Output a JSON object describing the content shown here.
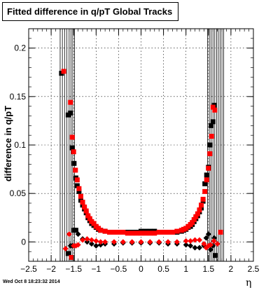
{
  "chart_data": {
    "type": "scatter",
    "title": "Fitted difference in q/pT  Global Tracks",
    "xlabel": "η",
    "ylabel": "difference in q/pT",
    "xlim": [
      -2.5,
      2.5
    ],
    "ylim": [
      -0.02,
      0.22
    ],
    "xticks": [
      "−2.5",
      "−2",
      "−1.5",
      "−1",
      "−0.5",
      "0",
      "0.5",
      "1",
      "1.5",
      "2",
      "2.5"
    ],
    "yticks": [
      "0",
      "0.05",
      "0.1",
      "0.15",
      "0.2"
    ],
    "grid": true,
    "legend": "none",
    "series": [
      {
        "color": "#000000",
        "markers": [
          "square",
          "diamond"
        ],
        "points": [
          [
            -1.77,
            0.174
          ],
          [
            -1.62,
            0.131
          ],
          [
            -1.57,
            0.133
          ],
          [
            -1.53,
            0.097
          ],
          [
            -1.49,
            0.081
          ],
          [
            -1.45,
            0.066
          ],
          [
            -1.42,
            0.058
          ],
          [
            -1.38,
            0.052
          ],
          [
            -1.34,
            0.043
          ],
          [
            -1.3,
            0.038
          ],
          [
            -1.26,
            0.034
          ],
          [
            -1.22,
            0.03
          ],
          [
            -1.18,
            0.025
          ],
          [
            -1.14,
            0.022
          ],
          [
            -1.1,
            0.019
          ],
          [
            -1.05,
            0.017
          ],
          [
            -1.0,
            0.015
          ],
          [
            -0.95,
            0.013
          ],
          [
            -0.9,
            0.012
          ],
          [
            -0.8,
            0.011
          ],
          [
            -0.7,
            0.01
          ],
          [
            -0.6,
            0.01
          ],
          [
            -0.5,
            0.01
          ],
          [
            -0.4,
            0.01
          ],
          [
            -0.3,
            0.01
          ],
          [
            -0.2,
            0.01
          ],
          [
            -0.1,
            0.01
          ],
          [
            0.0,
            0.011
          ],
          [
            0.1,
            0.011
          ],
          [
            0.2,
            0.011
          ],
          [
            0.3,
            0.011
          ],
          [
            0.4,
            0.01
          ],
          [
            0.5,
            0.01
          ],
          [
            0.6,
            0.01
          ],
          [
            0.7,
            0.01
          ],
          [
            0.8,
            0.01
          ],
          [
            0.9,
            0.011
          ],
          [
            0.95,
            0.012
          ],
          [
            1.0,
            0.013
          ],
          [
            1.05,
            0.015
          ],
          [
            1.1,
            0.016
          ],
          [
            1.14,
            0.018
          ],
          [
            1.18,
            0.021
          ],
          [
            1.22,
            0.024
          ],
          [
            1.26,
            0.027
          ],
          [
            1.3,
            0.031
          ],
          [
            1.34,
            0.035
          ],
          [
            1.38,
            0.042
          ],
          [
            1.42,
            0.06
          ],
          [
            1.46,
            0.069
          ],
          [
            1.5,
            0.077
          ],
          [
            1.53,
            0.1
          ],
          [
            1.56,
            0.12
          ],
          [
            1.6,
            0.124
          ],
          [
            1.63,
            0.141
          ],
          [
            -1.62,
            -0.012
          ],
          [
            -1.57,
            -0.004
          ],
          [
            -1.53,
            -0.004
          ],
          [
            -1.49,
            0.012
          ],
          [
            -1.45,
            0.012
          ],
          [
            -1.4,
            0.008
          ],
          [
            -1.3,
            0.003
          ],
          [
            -1.2,
            0.0
          ],
          [
            -1.1,
            -0.002
          ],
          [
            -1.0,
            -0.004
          ],
          [
            -0.9,
            -0.003
          ],
          [
            -0.8,
            -0.002
          ],
          [
            -0.6,
            -0.002
          ],
          [
            -0.4,
            -0.001
          ],
          [
            -0.2,
            -0.001
          ],
          [
            0.0,
            -0.001
          ],
          [
            0.2,
            -0.001
          ],
          [
            0.4,
            -0.001
          ],
          [
            0.6,
            -0.002
          ],
          [
            0.8,
            -0.002
          ],
          [
            1.0,
            -0.003
          ],
          [
            1.1,
            -0.004
          ],
          [
            1.2,
            -0.006
          ],
          [
            1.3,
            -0.006
          ],
          [
            1.4,
            -0.004
          ],
          [
            1.45,
            0.004
          ],
          [
            1.5,
            0.008
          ],
          [
            1.55,
            -0.008
          ],
          [
            1.6,
            -0.004
          ],
          [
            1.63,
            0.004
          ],
          [
            1.65,
            -0.014
          ]
        ]
      },
      {
        "color": "#ff0000",
        "markers": [
          "square",
          "diamond"
        ],
        "points": [
          [
            -1.72,
            0.176
          ],
          [
            -1.57,
            0.144
          ],
          [
            -1.53,
            0.108
          ],
          [
            -1.5,
            0.093
          ],
          [
            -1.46,
            0.074
          ],
          [
            -1.42,
            0.064
          ],
          [
            -1.38,
            0.055
          ],
          [
            -1.34,
            0.047
          ],
          [
            -1.3,
            0.041
          ],
          [
            -1.26,
            0.036
          ],
          [
            -1.22,
            0.032
          ],
          [
            -1.18,
            0.027
          ],
          [
            -1.14,
            0.024
          ],
          [
            -1.1,
            0.021
          ],
          [
            -1.05,
            0.019
          ],
          [
            -1.0,
            0.016
          ],
          [
            -0.95,
            0.014
          ],
          [
            -0.9,
            0.012
          ],
          [
            -0.8,
            0.011
          ],
          [
            -0.7,
            0.01
          ],
          [
            -0.6,
            0.01
          ],
          [
            -0.5,
            0.01
          ],
          [
            -0.4,
            0.01
          ],
          [
            -0.3,
            0.009
          ],
          [
            -0.2,
            0.009
          ],
          [
            -0.1,
            0.009
          ],
          [
            0.0,
            0.009
          ],
          [
            0.1,
            0.009
          ],
          [
            0.2,
            0.009
          ],
          [
            0.3,
            0.009
          ],
          [
            0.4,
            0.01
          ],
          [
            0.5,
            0.01
          ],
          [
            0.6,
            0.01
          ],
          [
            0.7,
            0.01
          ],
          [
            0.8,
            0.011
          ],
          [
            0.9,
            0.012
          ],
          [
            0.95,
            0.013
          ],
          [
            1.0,
            0.014
          ],
          [
            1.05,
            0.016
          ],
          [
            1.1,
            0.018
          ],
          [
            1.14,
            0.02
          ],
          [
            1.18,
            0.023
          ],
          [
            1.22,
            0.026
          ],
          [
            1.26,
            0.029
          ],
          [
            1.3,
            0.033
          ],
          [
            1.34,
            0.038
          ],
          [
            1.38,
            0.044
          ],
          [
            1.42,
            0.052
          ],
          [
            1.46,
            0.064
          ],
          [
            1.5,
            0.076
          ],
          [
            1.53,
            0.091
          ],
          [
            1.57,
            0.109
          ],
          [
            1.6,
            0.139
          ],
          [
            1.64,
            0.136
          ],
          [
            -1.68,
            -0.007
          ],
          [
            -1.6,
            0.008
          ],
          [
            -1.55,
            -0.016
          ],
          [
            -1.5,
            -0.004
          ],
          [
            -1.45,
            -0.004
          ],
          [
            -1.4,
            -0.003
          ],
          [
            -1.3,
            0.002
          ],
          [
            -1.2,
            0.003
          ],
          [
            -1.1,
            0.002
          ],
          [
            -1.0,
            0.001
          ],
          [
            -0.9,
            0.0
          ],
          [
            -0.8,
            0.0
          ],
          [
            -0.6,
            0.0
          ],
          [
            -0.4,
            0.0
          ],
          [
            -0.2,
            0.0
          ],
          [
            0.0,
            0.0
          ],
          [
            0.2,
            0.0
          ],
          [
            0.4,
            0.0
          ],
          [
            0.6,
            0.0
          ],
          [
            0.8,
            0.0
          ],
          [
            1.0,
            0.001
          ],
          [
            1.1,
            0.001
          ],
          [
            1.2,
            0.002
          ],
          [
            1.3,
            0.002
          ],
          [
            1.4,
            -0.002
          ],
          [
            1.45,
            -0.006
          ],
          [
            1.5,
            -0.004
          ],
          [
            1.55,
            -0.003
          ],
          [
            1.62,
            0.001
          ],
          [
            1.7,
            -0.002
          ],
          [
            1.77,
            0.01
          ]
        ]
      }
    ],
    "error_bars_at_x": [
      -1.8,
      -1.75,
      -1.7,
      -1.65,
      -1.6,
      -1.56,
      -1.52,
      -1.48,
      1.48,
      1.52,
      1.56,
      1.6,
      1.64,
      1.68,
      1.72,
      1.76,
      1.8,
      1.84
    ],
    "timestamp": "Wed Oct  8 18:23:32 2014"
  }
}
